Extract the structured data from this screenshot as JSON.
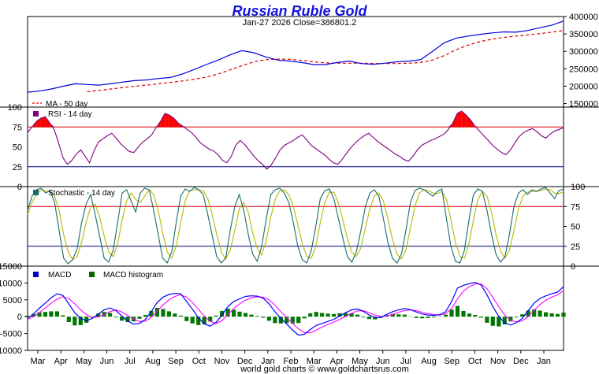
{
  "title": "Russian Ruble Gold",
  "subtitle": "Jan-27  2026   Close=386801.2",
  "footer": "world gold charts © www.goldchartsrus.com",
  "colors": {
    "title": "#1414dc",
    "price": "#0000dd",
    "ma": "#dd0000",
    "rsi": "#800080",
    "overbought_fill": "#ff0000",
    "level_line_red": "#cc0000",
    "level_line_blue": "#000080",
    "stoch_k": "#1a6b6b",
    "stoch_d": "#b8b800",
    "macd": "#0000ff",
    "signal": "#ff00ff",
    "histogram": "#007700",
    "macd_legend_box": "#0000cc",
    "hist_legend_box": "#006600",
    "rsi_legend_box": "#800080",
    "stoch_legend_box": "#1a6b6b"
  },
  "x_axis": {
    "months": [
      "Mar",
      "Apr",
      "May",
      "Jun",
      "Jul",
      "Aug",
      "Sep",
      "Oct",
      "Nov",
      "Dec",
      "Jan",
      "Feb",
      "Mar",
      "Apr",
      "May",
      "Jun",
      "Jul",
      "Aug",
      "Sep",
      "Oct",
      "Nov",
      "Dec",
      "Jan"
    ]
  },
  "chart_data": [
    {
      "type": "line",
      "panel": "price",
      "ylim": [
        140000,
        400000
      ],
      "yticks": [
        150000,
        200000,
        250000,
        300000,
        350000,
        400000
      ],
      "ytick_labels": [
        "150000",
        "200000",
        "250000",
        "300000",
        "350000",
        "400000"
      ],
      "series": [
        {
          "name": "price",
          "values": [
            183000,
            186000,
            192000,
            200000,
            207000,
            205000,
            203000,
            207000,
            212000,
            216000,
            218000,
            222000,
            225000,
            235000,
            248000,
            262000,
            275000,
            290000,
            302000,
            296000,
            284000,
            275000,
            272000,
            268000,
            262000,
            262000,
            268000,
            272000,
            265000,
            263000,
            266000,
            270000,
            272000,
            276000,
            300000,
            325000,
            338000,
            344000,
            349000,
            353000,
            356000,
            355000,
            360000,
            368000,
            375000,
            386801
          ]
        },
        {
          "name": "MA - 50 day",
          "values": [
            null,
            null,
            null,
            null,
            null,
            184000,
            188000,
            192000,
            196000,
            200000,
            203000,
            207000,
            211000,
            215000,
            220000,
            226000,
            235000,
            247000,
            259000,
            270000,
            276000,
            278000,
            277000,
            274000,
            270000,
            267000,
            266000,
            266000,
            266000,
            265000,
            265000,
            265000,
            266000,
            268000,
            275000,
            288000,
            305000,
            318000,
            328000,
            335000,
            340000,
            344000,
            347000,
            351000,
            355000,
            360000
          ]
        }
      ]
    },
    {
      "type": "line",
      "panel": "rsi",
      "legend": "RSI - 14 day",
      "ylim": [
        0,
        100
      ],
      "levels": [
        75,
        25
      ],
      "left_labels": [
        "100",
        "75",
        "50",
        "25",
        "0"
      ],
      "values": [
        68,
        75,
        82,
        86,
        88,
        80,
        72,
        55,
        36,
        28,
        33,
        41,
        46,
        38,
        30,
        45,
        56,
        60,
        64,
        67,
        61,
        54,
        49,
        44,
        43,
        50,
        56,
        60,
        65,
        74,
        82,
        92,
        90,
        86,
        80,
        76,
        72,
        68,
        62,
        55,
        51,
        47,
        45,
        40,
        33,
        30,
        38,
        52,
        58,
        53,
        46,
        39,
        33,
        28,
        22,
        27,
        36,
        46,
        52,
        55,
        58,
        62,
        65,
        59,
        52,
        48,
        44,
        40,
        35,
        30,
        28,
        34,
        42,
        49,
        55,
        60,
        64,
        67,
        62,
        57,
        53,
        49,
        45,
        41,
        38,
        34,
        32,
        38,
        46,
        52,
        55,
        58,
        60,
        63,
        66,
        72,
        80,
        92,
        95,
        90,
        84,
        76,
        70,
        64,
        58,
        52,
        47,
        43,
        40,
        46,
        55,
        63,
        68,
        71,
        73,
        69,
        64,
        61,
        66,
        70,
        72,
        74
      ]
    },
    {
      "type": "line",
      "panel": "stochastic",
      "legend": "Stochastic - 14 day",
      "ylim": [
        0,
        100
      ],
      "levels": [
        75,
        25
      ],
      "right_labels": [
        "100",
        "75",
        "50",
        "25",
        "0"
      ],
      "series": [
        {
          "name": "%K",
          "values": [
            70,
            88,
            96,
            98,
            92,
            95,
            80,
            45,
            10,
            3,
            8,
            22,
            55,
            78,
            90,
            65,
            38,
            10,
            5,
            20,
            55,
            92,
            96,
            82,
            68,
            92,
            98,
            96,
            70,
            40,
            10,
            4,
            18,
            55,
            88,
            97,
            94,
            99,
            96,
            90,
            65,
            38,
            12,
            4,
            10,
            45,
            75,
            90,
            70,
            40,
            15,
            6,
            25,
            60,
            90,
            96,
            98,
            92,
            80,
            55,
            25,
            8,
            4,
            20,
            50,
            85,
            95,
            97,
            85,
            60,
            35,
            12,
            5,
            18,
            45,
            75,
            92,
            96,
            88,
            60,
            30,
            10,
            4,
            15,
            45,
            80,
            95,
            98,
            96,
            92,
            88,
            94,
            97,
            60,
            25,
            6,
            4,
            20,
            58,
            90,
            97,
            94,
            70,
            40,
            15,
            5,
            12,
            40,
            75,
            92,
            96,
            90,
            96,
            94,
            97,
            99,
            92,
            85,
            95,
            97
          ]
        },
        {
          "name": "%D",
          "values": [
            65,
            80,
            90,
            96,
            95,
            93,
            88,
            70,
            40,
            18,
            8,
            12,
            30,
            55,
            75,
            78,
            62,
            38,
            18,
            12,
            28,
            58,
            82,
            92,
            84,
            80,
            88,
            96,
            90,
            70,
            42,
            18,
            10,
            25,
            55,
            82,
            95,
            96,
            96,
            95,
            85,
            65,
            40,
            18,
            9,
            20,
            45,
            72,
            80,
            68,
            42,
            22,
            14,
            32,
            62,
            84,
            95,
            96,
            90,
            75,
            52,
            28,
            12,
            10,
            25,
            55,
            80,
            93,
            93,
            80,
            58,
            35,
            17,
            12,
            23,
            48,
            72,
            88,
            92,
            82,
            60,
            34,
            15,
            9,
            20,
            48,
            75,
            92,
            96,
            95,
            92,
            91,
            94,
            84,
            58,
            30,
            12,
            10,
            28,
            58,
            84,
            94,
            88,
            68,
            40,
            19,
            10,
            20,
            45,
            72,
            88,
            93,
            94,
            94,
            95,
            97,
            96,
            92,
            91,
            94
          ]
        }
      ]
    },
    {
      "type": "line",
      "panel": "macd",
      "legend": [
        "MACD",
        "MACD histogram"
      ],
      "ylim": [
        -10000,
        15000
      ],
      "yticks": [
        -10000,
        -5000,
        0,
        5000,
        10000,
        15000
      ],
      "ytick_labels": [
        "-10000",
        "-5000",
        "0",
        "5000",
        "10000",
        "15000"
      ],
      "series": [
        {
          "name": "MACD",
          "values": [
            -500,
            800,
            2500,
            4000,
            5600,
            6800,
            6300,
            3800,
            1200,
            -500,
            -1200,
            -500,
            800,
            2000,
            2600,
            1800,
            200,
            -1300,
            -2200,
            -2000,
            -800,
            1500,
            4200,
            5800,
            6600,
            6900,
            6800,
            4500,
            2200,
            -300,
            -2100,
            -2800,
            -1700,
            500,
            3000,
            4500,
            5300,
            6000,
            6200,
            6100,
            5500,
            3800,
            1500,
            -500,
            -2200,
            -4000,
            -5500,
            -5200,
            -3800,
            -2600,
            -2000,
            -1400,
            -800,
            200,
            1200,
            2000,
            2300,
            1600,
            500,
            -300,
            -200,
            700,
            1500,
            2000,
            2400,
            2100,
            1400,
            800,
            500,
            400,
            600,
            1500,
            4500,
            8500,
            9300,
            9800,
            10200,
            9400,
            6500,
            3000,
            100,
            -1800,
            -2500,
            -1800,
            -500,
            1800,
            4000,
            5400,
            6200,
            6800,
            7300,
            8900
          ]
        },
        {
          "name": "signal",
          "values": [
            -800,
            0,
            1200,
            2600,
            4000,
            5200,
            5900,
            5400,
            3800,
            2000,
            600,
            -200,
            -100,
            600,
            1500,
            2000,
            1400,
            300,
            -800,
            -1400,
            -1300,
            -200,
            1600,
            3500,
            5000,
            6000,
            6500,
            5800,
            4200,
            2200,
            200,
            -1400,
            -2000,
            -1200,
            600,
            2400,
            3800,
            4900,
            5600,
            5900,
            5800,
            5000,
            3400,
            1500,
            -300,
            -2000,
            -3600,
            -4700,
            -4800,
            -4000,
            -3100,
            -2300,
            -1600,
            -800,
            100,
            1000,
            1700,
            1800,
            1200,
            500,
            100,
            200,
            700,
            1300,
            1800,
            2000,
            1800,
            1300,
            900,
            600,
            500,
            900,
            2400,
            5300,
            7600,
            8900,
            9700,
            9700,
            8300,
            5700,
            3000,
            500,
            -1100,
            -1600,
            -1200,
            0,
            1900,
            3600,
            4900,
            5800,
            6500,
            7700
          ]
        },
        {
          "name": "MACD histogram",
          "values": [
            300,
            800,
            1300,
            1400,
            1600,
            1600,
            400,
            -1600,
            -2600,
            -2500,
            -1800,
            -300,
            900,
            1400,
            1100,
            -200,
            -1200,
            -1600,
            -1400,
            -600,
            500,
            1700,
            2600,
            2300,
            1600,
            900,
            300,
            -1300,
            -2000,
            -2500,
            -2300,
            -1400,
            300,
            1700,
            2400,
            2100,
            1500,
            1100,
            600,
            200,
            -300,
            -1200,
            -1900,
            -2000,
            -1900,
            -2000,
            -1900,
            -500,
            1000,
            1400,
            1100,
            900,
            800,
            1000,
            1100,
            1000,
            600,
            -200,
            -700,
            -800,
            -300,
            500,
            800,
            700,
            600,
            100,
            -400,
            -500,
            -400,
            -200,
            100,
            600,
            2100,
            3200,
            1700,
            900,
            500,
            -300,
            -1800,
            -2700,
            -2900,
            -2300,
            -1400,
            -200,
            700,
            1800,
            2100,
            1800,
            1300,
            1000,
            800,
            1200
          ]
        }
      ]
    }
  ]
}
